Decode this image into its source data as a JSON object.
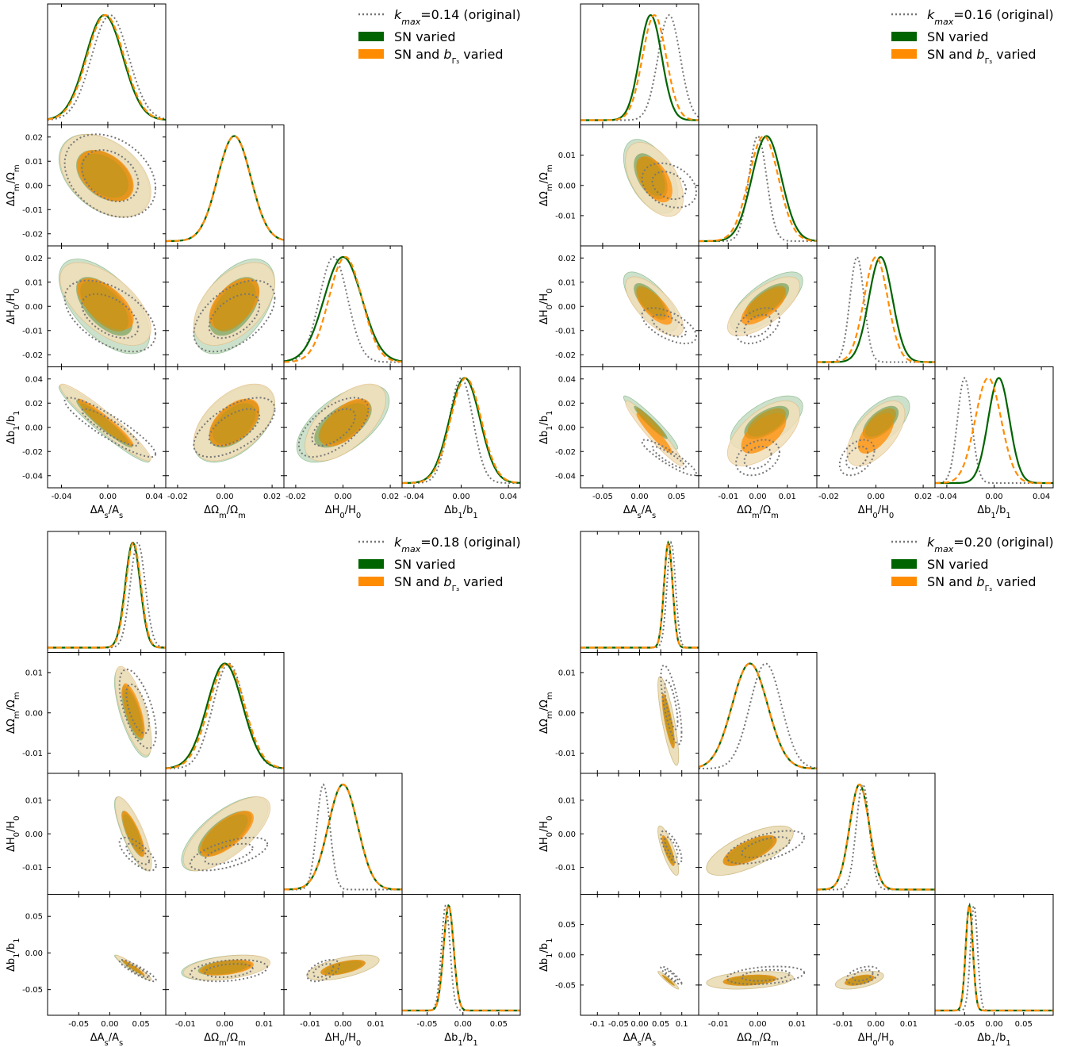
{
  "colors": {
    "original": "#777777",
    "sn": "#006400",
    "snb": "#ff8c00",
    "sn_fill_outer": "#8fbc8f",
    "snb_fill_outer": "#f0deb8",
    "overlap": "#c0961e"
  },
  "legend_common": {
    "sn": "SN varied",
    "snb_prefix": "SN and ",
    "snb_suffix": " varied"
  },
  "params": [
    {
      "x_label": "ΔA_s/A_s",
      "y_label": "ΔΩ_m/Ω_m"
    }
  ],
  "chart_data": [
    {
      "type": "corner",
      "legend": {
        "original": "=0.14 (original)",
        "sn": "SN varied",
        "snb": "SN and b_Γ3 varied"
      },
      "parameters": [
        "ΔA_s/A_s",
        "ΔΩ_m/Ω_m",
        "ΔH_0/H_0",
        "Δb_1/b_1"
      ],
      "ranges": [
        [
          -0.052,
          0.05
        ],
        [
          -0.025,
          0.025
        ],
        [
          -0.025,
          0.025
        ],
        [
          -0.05,
          0.05
        ]
      ],
      "ticks": [
        [
          -0.04,
          0.0,
          0.04
        ],
        [
          -0.02,
          0.0,
          0.02
        ],
        [
          -0.02,
          0.0,
          0.02
        ],
        [
          -0.04,
          0.0,
          0.04
        ]
      ],
      "ytick_labels": [
        [],
        [
          "-0.02",
          "-0.01",
          "0.00",
          "0.01",
          "0.02"
        ],
        [
          "-0.02",
          "-0.01",
          "0.00",
          "0.01",
          "0.02"
        ],
        [
          "-0.04",
          "-0.02",
          "0.00",
          "0.02",
          "0.04"
        ]
      ],
      "yticks": [
        [],
        [
          -0.02,
          -0.01,
          0.0,
          0.01,
          0.02
        ],
        [
          -0.02,
          -0.01,
          0.0,
          0.01,
          0.02
        ],
        [
          -0.04,
          -0.02,
          0.0,
          0.02,
          0.04
        ]
      ],
      "xtick_labels": [
        [
          "-0.04",
          "0.00",
          "0.04"
        ],
        [
          "-0.02",
          "0.00",
          "0.02"
        ],
        [
          "-0.02",
          "0.00",
          "0.02"
        ],
        [
          "-0.04",
          "0.00",
          "0.04"
        ]
      ],
      "posteriors": {
        "original": {
          "mean": [
            0.002,
            0.004,
            -0.004,
            0.0
          ],
          "sigma": [
            0.016,
            0.007,
            0.006,
            0.01
          ]
        },
        "sn": {
          "mean": [
            -0.003,
            0.004,
            0.0,
            0.003
          ],
          "sigma": [
            0.016,
            0.007,
            0.008,
            0.013
          ]
        },
        "snb": {
          "mean": [
            -0.002,
            0.004,
            0.001,
            0.004
          ],
          "sigma": [
            0.016,
            0.007,
            0.007,
            0.013
          ]
        }
      },
      "correlations": {
        "original": [
          [
            1,
            -0.3,
            -0.5,
            -0.9
          ],
          [
            -0.3,
            1,
            0.5,
            0.6
          ],
          [
            -0.5,
            0.5,
            1,
            0.6
          ],
          [
            -0.9,
            0.6,
            0.6,
            1
          ]
        ],
        "sn": [
          [
            1,
            -0.4,
            -0.6,
            -0.95
          ],
          [
            -0.4,
            1,
            0.5,
            0.5
          ],
          [
            -0.6,
            0.5,
            1,
            0.6
          ],
          [
            -0.95,
            0.5,
            0.6,
            1
          ]
        ]
      }
    },
    {
      "type": "corner",
      "legend": {
        "original": "=0.16 (original)",
        "sn": "SN varied",
        "snb": "SN and b_Γ3 varied"
      },
      "parameters": [
        "ΔA_s/A_s",
        "ΔΩ_m/Ω_m",
        "ΔH_0/H_0",
        "Δb_1/b_1"
      ],
      "ranges": [
        [
          -0.08,
          0.08
        ],
        [
          -0.02,
          0.02
        ],
        [
          -0.025,
          0.025
        ],
        [
          -0.05,
          0.05
        ]
      ],
      "ticks": [
        [
          -0.05,
          0.0,
          0.05
        ],
        [
          -0.01,
          0.0,
          0.01
        ],
        [
          -0.02,
          0.0,
          0.02
        ],
        [
          -0.04,
          0.0,
          0.04
        ]
      ],
      "ytick_labels": [
        [],
        [
          "-0.01",
          "0.00",
          "0.01"
        ],
        [
          "-0.02",
          "-0.01",
          "0.00",
          "0.01",
          "0.02"
        ],
        [
          "-0.04",
          "-0.02",
          "0.00",
          "0.02",
          "0.04"
        ]
      ],
      "yticks": [
        [],
        [
          -0.01,
          0.0,
          0.01
        ],
        [
          -0.02,
          -0.01,
          0.0,
          0.01,
          0.02
        ],
        [
          -0.04,
          -0.02,
          0.0,
          0.02,
          0.04
        ]
      ],
      "xtick_labels": [
        [
          "-0.05",
          "0.00",
          "0.05"
        ],
        [
          "-0.01",
          "0.00",
          "0.01"
        ],
        [
          "-0.02",
          "0.00",
          "0.02"
        ],
        [
          "-0.04",
          "0.00",
          "0.04"
        ]
      ],
      "posteriors": {
        "original": {
          "mean": [
            0.04,
            0.0,
            -0.008,
            -0.025
          ],
          "sigma": [
            0.015,
            0.003,
            0.003,
            0.006
          ]
        },
        "sn": {
          "mean": [
            0.015,
            0.003,
            0.002,
            0.004
          ],
          "sigma": [
            0.015,
            0.005,
            0.005,
            0.009
          ]
        },
        "snb": {
          "mean": [
            0.02,
            0.002,
            0.0,
            -0.005
          ],
          "sigma": [
            0.016,
            0.005,
            0.005,
            0.011
          ]
        }
      },
      "correlations": {
        "original": [
          [
            1,
            -0.3,
            -0.6,
            -0.9
          ],
          [
            -0.3,
            1,
            0.4,
            0.3
          ],
          [
            -0.6,
            0.4,
            1,
            0.4
          ],
          [
            -0.9,
            0.3,
            0.4,
            1
          ]
        ],
        "sn": [
          [
            1,
            -0.5,
            -0.7,
            -0.95
          ],
          [
            -0.5,
            1,
            0.7,
            0.6
          ],
          [
            -0.7,
            0.7,
            1,
            0.6
          ],
          [
            -0.95,
            0.6,
            0.6,
            1
          ]
        ]
      }
    },
    {
      "type": "corner",
      "legend": {
        "original": "=0.18 (original)",
        "sn": "SN varied",
        "snb": "SN and b_Γ3 varied"
      },
      "parameters": [
        "ΔA_s/A_s",
        "ΔΩ_m/Ω_m",
        "ΔH_0/H_0",
        "Δb_1/b_1"
      ],
      "ranges": [
        [
          -0.1,
          0.09
        ],
        [
          -0.015,
          0.015
        ],
        [
          -0.018,
          0.018
        ],
        [
          -0.085,
          0.08
        ]
      ],
      "ticks": [
        [
          -0.05,
          0.0,
          0.05
        ],
        [
          -0.01,
          0.0,
          0.01
        ],
        [
          -0.01,
          0.0,
          0.01
        ],
        [
          -0.05,
          0.0,
          0.05
        ]
      ],
      "ytick_labels": [
        [],
        [
          "-0.01",
          "0.00",
          "0.01"
        ],
        [
          "-0.01",
          "0.00",
          "0.01"
        ],
        [
          "-0.05",
          "0.00",
          "0.05"
        ]
      ],
      "yticks": [
        [],
        [
          -0.01,
          0.0,
          0.01
        ],
        [
          -0.01,
          0.0,
          0.01
        ],
        [
          -0.05,
          0.0,
          0.05
        ]
      ],
      "xtick_labels": [
        [
          "-0.05",
          "0.00",
          "0.05"
        ],
        [
          "-0.01",
          "0.00",
          "0.01"
        ],
        [
          "-0.01",
          "0.00",
          "0.01"
        ],
        [
          "-0.05",
          "0.00",
          "0.05"
        ]
      ],
      "posteriors": {
        "original": {
          "mean": [
            0.045,
            0.001,
            -0.006,
            -0.024
          ],
          "sigma": [
            0.012,
            0.004,
            0.002,
            0.006
          ]
        },
        "sn": {
          "mean": [
            0.037,
            0.0,
            0.0,
            -0.02
          ],
          "sigma": [
            0.012,
            0.0045,
            0.0045,
            0.007
          ]
        },
        "snb": {
          "mean": [
            0.038,
            0.0005,
            0.0,
            -0.02
          ],
          "sigma": [
            0.012,
            0.0045,
            0.0045,
            0.007
          ]
        }
      },
      "correlations": {
        "original": [
          [
            1,
            -0.6,
            -0.7,
            -0.9
          ],
          [
            -0.6,
            1,
            0.6,
            0.3
          ],
          [
            -0.7,
            0.6,
            1,
            0.5
          ],
          [
            -0.9,
            0.3,
            0.5,
            1
          ]
        ],
        "sn": [
          [
            1,
            -0.7,
            -0.8,
            -0.95
          ],
          [
            -0.7,
            1,
            0.7,
            0.4
          ],
          [
            -0.8,
            0.7,
            1,
            0.6
          ],
          [
            -0.95,
            0.4,
            0.6,
            1
          ]
        ]
      }
    },
    {
      "type": "corner",
      "legend": {
        "original": "=0.20 (original)",
        "sn": "SN varied",
        "snb": "SN and b_Γ3 varied"
      },
      "parameters": [
        "ΔA_s/A_s",
        "ΔΩ_m/Ω_m",
        "ΔH_0/H_0",
        "Δb_1/b_1"
      ],
      "ranges": [
        [
          -0.14,
          0.14
        ],
        [
          -0.015,
          0.015
        ],
        [
          -0.018,
          0.018
        ],
        [
          -0.1,
          0.1
        ]
      ],
      "ticks": [
        [
          -0.1,
          -0.05,
          0.0,
          0.05,
          0.1
        ],
        [
          -0.01,
          0.0,
          0.01
        ],
        [
          -0.01,
          0.0,
          0.01
        ],
        [
          -0.05,
          0.0,
          0.05
        ]
      ],
      "ytick_labels": [
        [],
        [
          "-0.01",
          "0.00",
          "0.01"
        ],
        [
          "-0.01",
          "0.00",
          "0.01"
        ],
        [
          "-0.05",
          "0.00",
          "0.05"
        ]
      ],
      "yticks": [
        [],
        [
          -0.01,
          0.0,
          0.01
        ],
        [
          -0.01,
          0.0,
          0.01
        ],
        [
          -0.05,
          0.0,
          0.05
        ]
      ],
      "xtick_labels": [
        [
          "-0.1",
          "-0.05",
          "0.00",
          "0.05",
          "0.1"
        ],
        [
          "-0.01",
          "0.00",
          "0.01"
        ],
        [
          "-0.01",
          "0.00",
          "0.01"
        ],
        [
          "-0.05",
          "0.00",
          "0.05"
        ]
      ],
      "posteriors": {
        "original": {
          "mean": [
            0.075,
            0.002,
            -0.004,
            -0.034
          ],
          "sigma": [
            0.01,
            0.004,
            0.002,
            0.006
          ]
        },
        "sn": {
          "mean": [
            0.068,
            -0.002,
            -0.005,
            -0.042
          ],
          "sigma": [
            0.01,
            0.0045,
            0.003,
            0.006
          ]
        },
        "snb": {
          "mean": [
            0.068,
            -0.002,
            -0.005,
            -0.042
          ],
          "sigma": [
            0.01,
            0.0045,
            0.003,
            0.006
          ]
        }
      },
      "correlations": {
        "original": [
          [
            1,
            -0.7,
            -0.7,
            -0.9
          ],
          [
            -0.7,
            1,
            0.6,
            0.3
          ],
          [
            -0.7,
            0.6,
            1,
            0.4
          ],
          [
            -0.9,
            0.3,
            0.4,
            1
          ]
        ],
        "sn": [
          [
            1,
            -0.8,
            -0.8,
            -0.95
          ],
          [
            -0.8,
            1,
            0.7,
            0.3
          ],
          [
            -0.8,
            0.7,
            1,
            0.5
          ],
          [
            -0.95,
            0.3,
            0.5,
            1
          ]
        ]
      }
    }
  ]
}
